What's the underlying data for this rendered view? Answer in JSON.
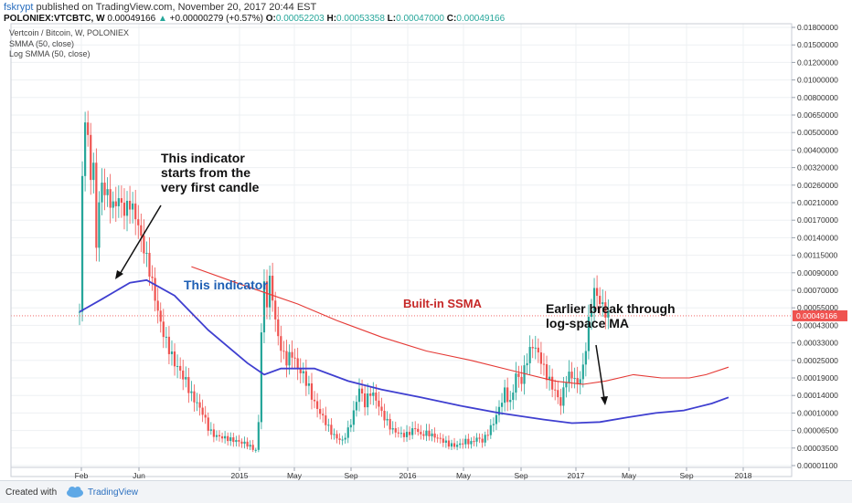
{
  "header": {
    "author": "fskrypt",
    "published": "published on TradingView.com, November 20, 2017 20:44 EST",
    "symbol_line": "POLONIEX:VTCBTC, W",
    "last": "0.00049166",
    "change": "+0.00000279 (+0.57%)",
    "o_label": "O:",
    "o_value": "0.00052203",
    "h_label": "H:",
    "h_value": "0.00053358",
    "l_label": "L:",
    "l_value": "0.00047000",
    "c_label": "C:",
    "c_value": "0.00049166"
  },
  "legend": {
    "title": "Vertcoin / Bitcoin, W, POLONIEX",
    "ind1": "SMMA (50, close)",
    "ind2": "Log SMMA (50, close)"
  },
  "footer": {
    "created_with": "Created with",
    "brand": "TradingView"
  },
  "annotations": {
    "a1": "This indicator\nstarts from the\nvery first candle",
    "a2": "This indicator",
    "a3": "Built-in SSMA",
    "a4": "Earlier break through\nlog-space MA"
  },
  "colors": {
    "up": "#26a69a",
    "down": "#ef5350",
    "log_smma": "#3f3fd0",
    "smma": "#e53935",
    "label_blue": "#1e5fb4",
    "label_red": "#c62828",
    "price_tag": "#ef5350"
  },
  "chart_data": {
    "type": "candlestick",
    "y_scale": "log",
    "x_ticks": [
      "Feb",
      "Jun",
      "2015",
      "May",
      "Sep",
      "2016",
      "May",
      "Sep",
      "2017",
      "May",
      "Sep",
      "2018"
    ],
    "y_ticks": [
      "0.01800000",
      "0.01500000",
      "0.01200000",
      "0.01000000",
      "0.00800000",
      "0.00650000",
      "0.00500000",
      "0.00400000",
      "0.00320000",
      "0.00260000",
      "0.00210000",
      "0.00170000",
      "0.00140000",
      "0.00115000",
      "0.00090000",
      "0.00070000",
      "0.00055000",
      "0.00043000",
      "0.00033000",
      "0.00025000",
      "0.00019000",
      "0.00014000",
      "0.00010000",
      "0.00006500",
      "0.00003500",
      "0.00001100"
    ],
    "last_price": "0.00049166",
    "series": [
      {
        "name": "Log SMMA (50, close)",
        "color": "#3f3fd0",
        "points": [
          [
            0,
            0.00052
          ],
          [
            8,
            0.00062
          ],
          [
            18,
            0.00078
          ],
          [
            24,
            0.00081
          ],
          [
            34,
            0.00065
          ],
          [
            46,
            0.0004
          ],
          [
            60,
            0.00024
          ],
          [
            66,
            0.0002
          ],
          [
            72,
            0.00022
          ],
          [
            84,
            0.00022
          ],
          [
            96,
            0.00018
          ],
          [
            108,
            0.000155
          ],
          [
            122,
            0.000135
          ],
          [
            136,
            0.000115
          ],
          [
            150,
            0.0001
          ],
          [
            166,
            8.5e-05
          ],
          [
            176,
            7.8e-05
          ],
          [
            186,
            8e-05
          ],
          [
            196,
            9e-05
          ],
          [
            206,
            0.0001
          ],
          [
            216,
            0.000105
          ],
          [
            226,
            0.00012
          ],
          [
            232,
            0.000135
          ]
        ]
      },
      {
        "name": "SMMA (50, close)",
        "color": "#e53935",
        "points": [
          [
            40,
            0.00098
          ],
          [
            56,
            0.00078
          ],
          [
            66,
            0.00068
          ],
          [
            78,
            0.00058
          ],
          [
            92,
            0.00046
          ],
          [
            108,
            0.00036
          ],
          [
            124,
            0.00029
          ],
          [
            140,
            0.00025
          ],
          [
            156,
            0.00021
          ],
          [
            170,
            0.00018
          ],
          [
            180,
            0.00017
          ],
          [
            188,
            0.00018
          ],
          [
            198,
            0.0002
          ],
          [
            208,
            0.00019
          ],
          [
            218,
            0.00019
          ],
          [
            224,
            0.0002
          ],
          [
            232,
            0.000225
          ]
        ]
      }
    ]
  }
}
